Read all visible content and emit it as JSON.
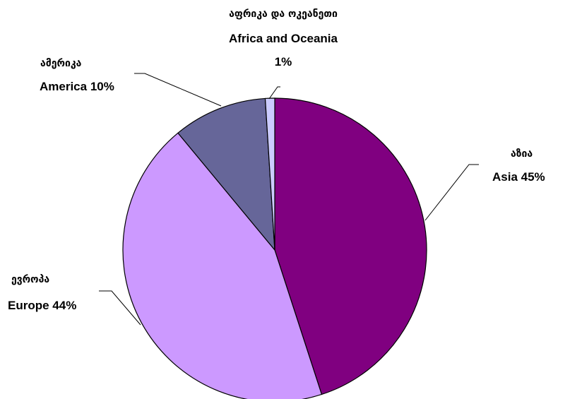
{
  "chart_data": {
    "type": "pie",
    "title": "",
    "slices": [
      {
        "label_ka": "აზია",
        "label_en": "Asia 45%",
        "value": 45,
        "color": "#800080"
      },
      {
        "label_ka": "ევროპა",
        "label_en": "Europe 44%",
        "value": 44,
        "color": "#CC99FF"
      },
      {
        "label_ka": "ამერიკა",
        "label_en": "America 10%",
        "value": 10,
        "color": "#666699"
      },
      {
        "label_ka": "აფრიკა და ოკეანეთი",
        "label_en": "Africa and Oceania",
        "label_pct": "1%",
        "value": 1,
        "color": "#CCCCFF"
      }
    ],
    "start_angle_deg": 0,
    "direction": "clockwise",
    "legend": "none"
  }
}
